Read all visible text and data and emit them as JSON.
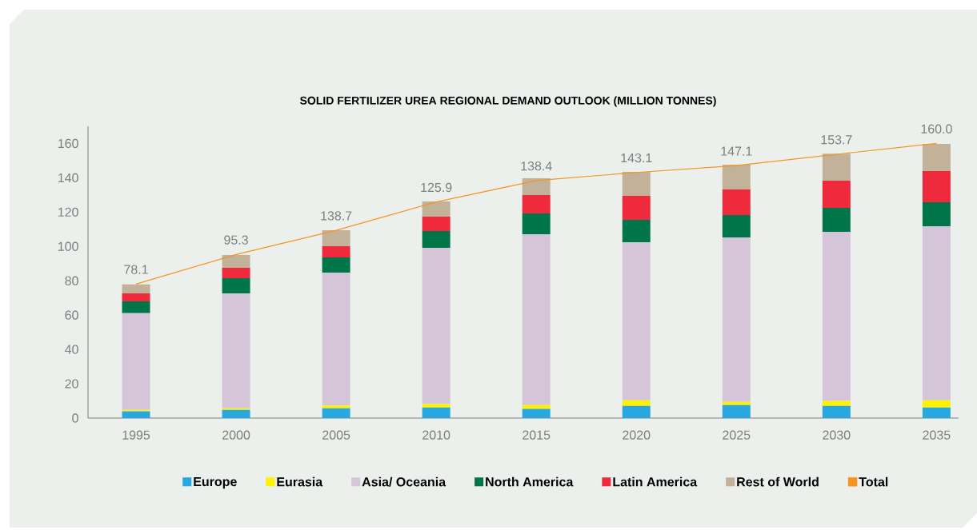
{
  "chart_data": {
    "type": "bar",
    "stacked": true,
    "title": "SOLID FERTILIZER UREA REGIONAL DEMAND OUTLOOK (MILLION TONNES)",
    "annotations": [
      {
        "text": "138.7",
        "x": "2005",
        "y": 109.4
      }
    ],
    "categories": [
      "1995",
      "2000",
      "2005",
      "2010",
      "2015",
      "2020",
      "2025",
      "2030",
      "2035"
    ],
    "ylim": [
      0,
      170
    ],
    "yticks": [
      0,
      20,
      40,
      60,
      80,
      100,
      120,
      140,
      160
    ],
    "legend": "bottom",
    "series": [
      {
        "name": "Europe",
        "color": "#29a8e0",
        "values": [
          3.9,
          4.8,
          5.7,
          6.2,
          5.3,
          7.1,
          7.6,
          7.1,
          6.2
        ]
      },
      {
        "name": "Eurasia",
        "color": "#fff200",
        "values": [
          0.9,
          0.9,
          1.6,
          2.0,
          2.3,
          3.2,
          1.8,
          2.9,
          4.1
        ]
      },
      {
        "name": "Asia/ Oceania",
        "color": "#d5c5d8",
        "values": [
          56.3,
          67.0,
          77.5,
          91.0,
          99.5,
          92.2,
          95.9,
          98.5,
          101.5
        ]
      },
      {
        "name": "North America",
        "color": "#00754a",
        "values": [
          6.9,
          8.8,
          8.8,
          9.8,
          12.1,
          13.0,
          13.0,
          14.0,
          13.9
        ]
      },
      {
        "name": "Latin America",
        "color": "#ee2a3c",
        "values": [
          4.7,
          6.1,
          6.5,
          8.4,
          10.7,
          14.0,
          14.9,
          15.8,
          18.2
        ]
      },
      {
        "name": "Rest of World",
        "color": "#c2b299",
        "values": [
          5.2,
          7.4,
          9.3,
          8.8,
          9.8,
          13.9,
          14.4,
          15.8,
          15.8
        ]
      },
      {
        "name": "Total",
        "type": "line",
        "color": "#f7941d",
        "values": [
          78.1,
          95.3,
          109.4,
          125.9,
          138.4,
          143.1,
          147.1,
          153.7,
          160.0
        ],
        "value_labels": [
          "78.1",
          "95.3",
          null,
          "125.9",
          "138.4",
          "143.1",
          "147.1",
          "153.7",
          "160.0"
        ]
      }
    ]
  }
}
